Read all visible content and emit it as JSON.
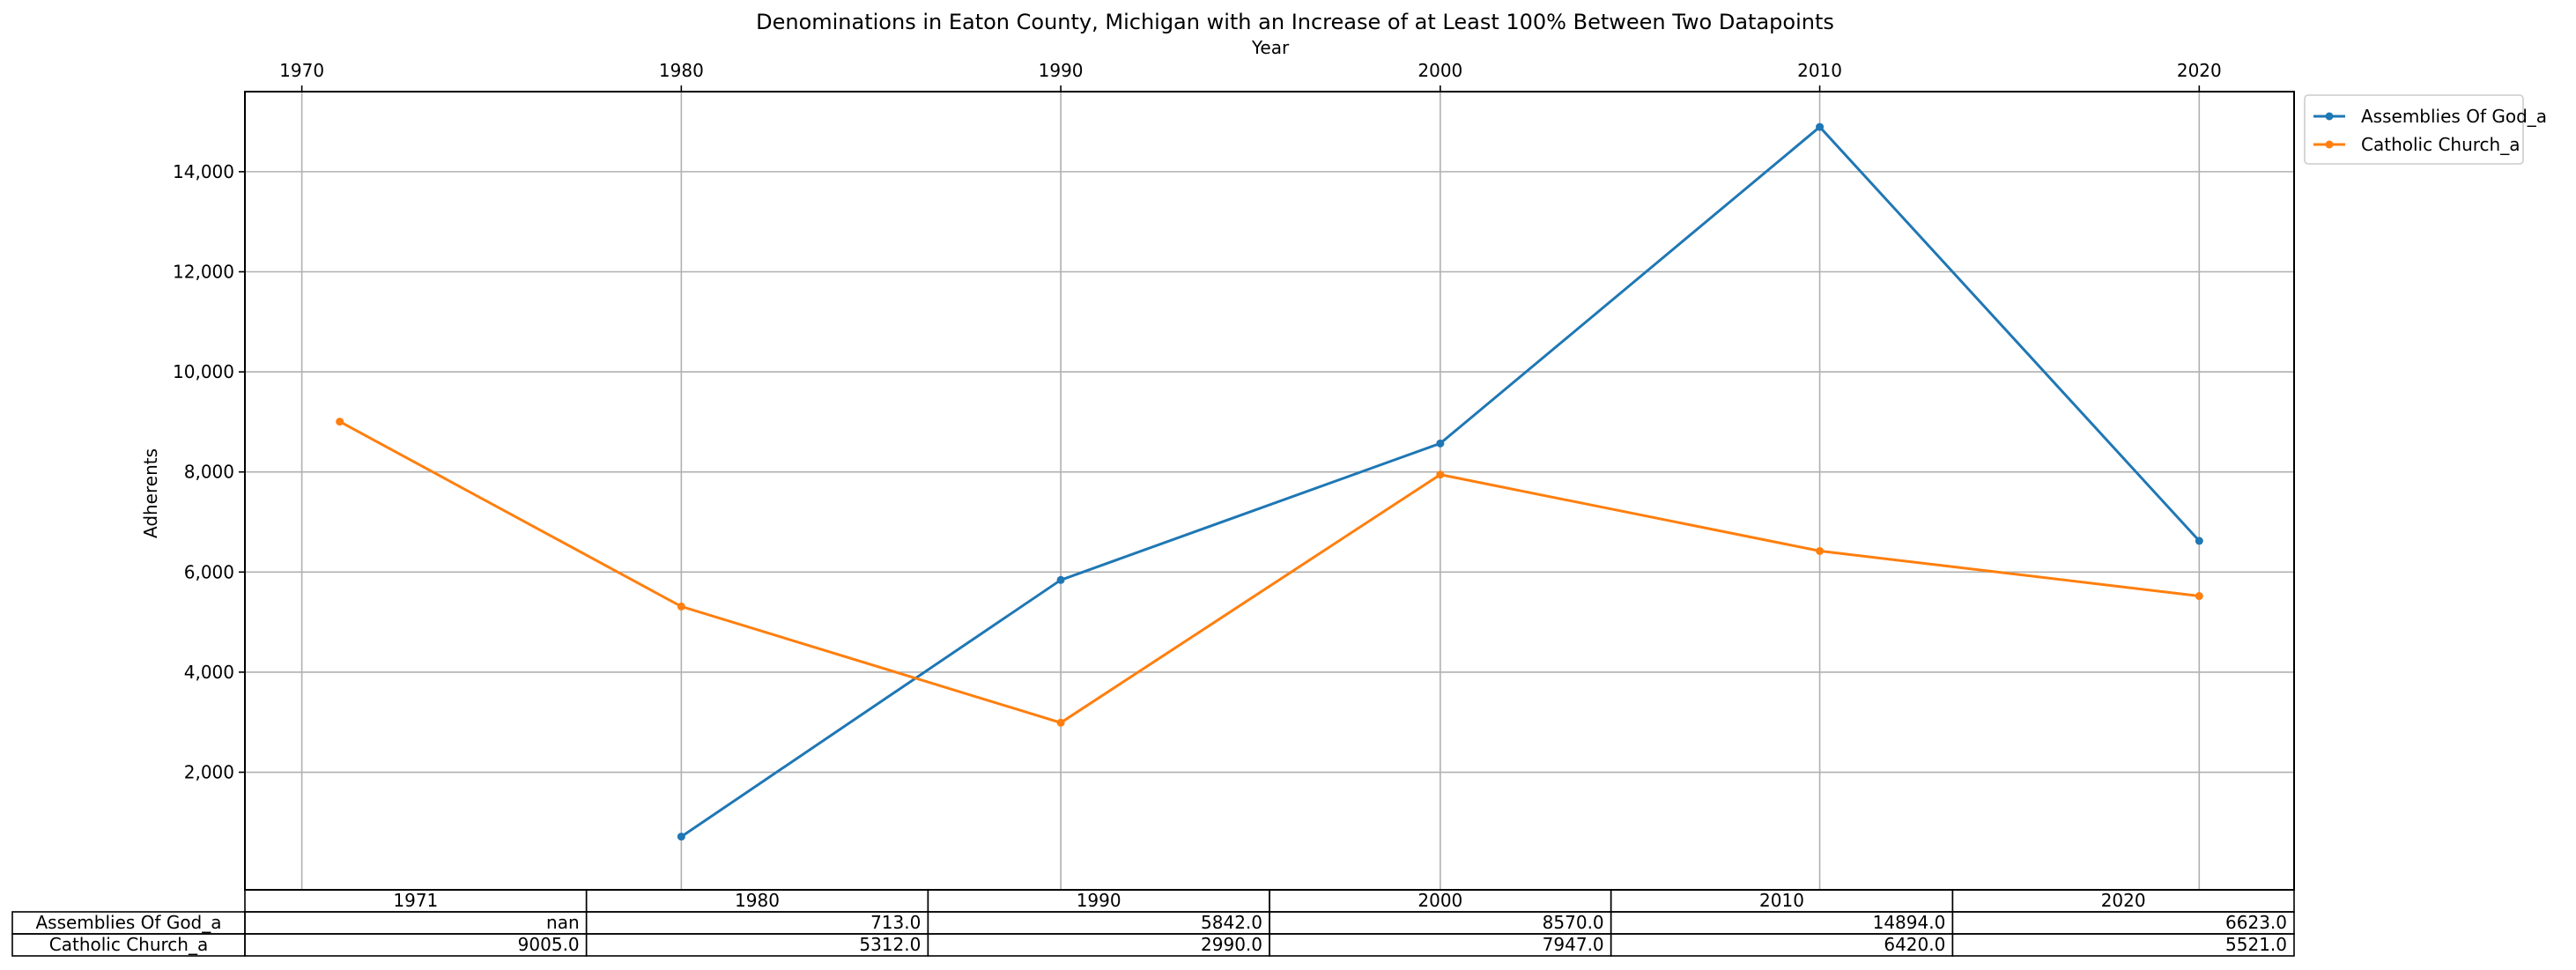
{
  "chart_data": {
    "type": "line",
    "title": "Denominations in Eaton County, Michigan with an Increase of at Least 100% Between Two Datapoints",
    "xlabel": "Year",
    "ylabel": "Adherents",
    "x_ticks": [
      1970,
      1980,
      1990,
      2000,
      2010,
      2020
    ],
    "x_tick_labels": [
      "1970",
      "1980",
      "1990",
      "2000",
      "2010",
      "2020"
    ],
    "y_ticks": [
      2000,
      4000,
      6000,
      8000,
      10000,
      12000,
      14000
    ],
    "y_tick_labels": [
      "2,000",
      "4,000",
      "6,000",
      "8,000",
      "10,000",
      "12,000",
      "14,000"
    ],
    "xlim": [
      1968.5,
      2022.5
    ],
    "ylim": [
      -350,
      15600
    ],
    "grid": true,
    "legend_position": "outside upper right",
    "series": [
      {
        "name": "Assemblies Of God_a",
        "color": "#1f77b4",
        "x": [
          1980,
          1990,
          2000,
          2010,
          2020
        ],
        "values": [
          713,
          5842,
          8570,
          14894,
          6623
        ]
      },
      {
        "name": "Catholic Church_a",
        "color": "#ff7f0e",
        "x": [
          1971,
          1980,
          1990,
          2000,
          2010,
          2020
        ],
        "values": [
          9005,
          5312,
          2990,
          7947,
          6420,
          5521
        ]
      }
    ],
    "table": {
      "columns": [
        "1971",
        "1980",
        "1990",
        "2000",
        "2010",
        "2020"
      ],
      "rows": [
        {
          "label": "Assemblies Of God_a",
          "cells": [
            "nan",
            "713.0",
            "5842.0",
            "8570.0",
            "14894.0",
            "6623.0"
          ]
        },
        {
          "label": "Catholic Church_a",
          "cells": [
            "9005.0",
            "5312.0",
            "2990.0",
            "7947.0",
            "6420.0",
            "5521.0"
          ]
        }
      ]
    }
  }
}
